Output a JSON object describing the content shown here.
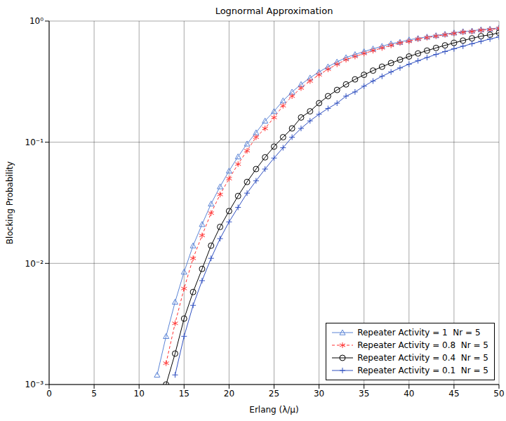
{
  "chart_data": {
    "type": "line",
    "title": "Lognormal Approximation",
    "x_label": "Erlang (λ/μ)",
    "y_label": "Blocking Probability",
    "x": [
      12,
      13,
      14,
      15,
      16,
      17,
      18,
      19,
      20,
      21,
      22,
      23,
      24,
      25,
      26,
      27,
      28,
      29,
      30,
      31,
      32,
      33,
      34,
      35,
      36,
      37,
      38,
      39,
      40,
      41,
      42,
      43,
      44,
      45,
      46,
      47,
      48,
      49,
      50
    ],
    "series": [
      {
        "name": "Repeater Activity = 1  Nr = 5",
        "color": "#5b84d6",
        "marker": "triangle",
        "line_style": "solid",
        "values": [
          0.0012,
          0.0025,
          0.0048,
          0.0085,
          0.014,
          0.021,
          0.031,
          0.043,
          0.058,
          0.076,
          0.097,
          0.12,
          0.15,
          0.18,
          0.22,
          0.26,
          0.3,
          0.34,
          0.38,
          0.42,
          0.46,
          0.5,
          0.53,
          0.56,
          0.59,
          0.62,
          0.65,
          0.67,
          0.7,
          0.72,
          0.74,
          0.76,
          0.78,
          0.8,
          0.82,
          0.83,
          0.85,
          0.86,
          0.88
        ]
      },
      {
        "name": "Repeater Activity = 0.8  Nr = 5",
        "color": "#ff3030",
        "marker": "star",
        "line_style": "dashed",
        "values": [
          null,
          0.0015,
          0.0032,
          0.0062,
          0.011,
          0.017,
          0.026,
          0.037,
          0.05,
          0.066,
          0.085,
          0.11,
          0.13,
          0.16,
          0.2,
          0.24,
          0.28,
          0.32,
          0.36,
          0.4,
          0.44,
          0.48,
          0.51,
          0.54,
          0.57,
          0.6,
          0.63,
          0.66,
          0.68,
          0.71,
          0.73,
          0.75,
          0.77,
          0.79,
          0.81,
          0.82,
          0.84,
          0.85,
          0.87
        ]
      },
      {
        "name": "Repeater Activity = 0.4  Nr = 5",
        "color": "#000000",
        "marker": "circle",
        "line_style": "solid",
        "values": [
          null,
          0.001,
          0.0018,
          0.0035,
          0.0058,
          0.009,
          0.014,
          0.02,
          0.027,
          0.036,
          0.047,
          0.06,
          0.075,
          0.092,
          0.11,
          0.13,
          0.16,
          0.18,
          0.21,
          0.24,
          0.27,
          0.3,
          0.33,
          0.36,
          0.39,
          0.42,
          0.45,
          0.48,
          0.51,
          0.54,
          0.57,
          0.6,
          0.63,
          0.66,
          0.69,
          0.72,
          0.75,
          0.77,
          0.8
        ]
      },
      {
        "name": "Repeater Activity = 0.1  Nr = 5",
        "color": "#3050c0",
        "marker": "plus",
        "line_style": "solid",
        "values": [
          null,
          null,
          0.0012,
          0.0025,
          0.0045,
          0.0072,
          0.011,
          0.016,
          0.022,
          0.029,
          0.038,
          0.048,
          0.06,
          0.074,
          0.09,
          0.11,
          0.13,
          0.15,
          0.17,
          0.19,
          0.21,
          0.24,
          0.26,
          0.29,
          0.32,
          0.35,
          0.38,
          0.41,
          0.44,
          0.47,
          0.5,
          0.53,
          0.56,
          0.59,
          0.62,
          0.65,
          0.68,
          0.71,
          0.74
        ]
      }
    ],
    "xlim": [
      0,
      50
    ],
    "xticks": [
      0,
      5,
      10,
      15,
      20,
      25,
      30,
      35,
      40,
      45,
      50
    ],
    "ylim": [
      0.001,
      1
    ],
    "yticks": [
      {
        "value": 0.001,
        "label": "10⁻³"
      },
      {
        "value": 0.01,
        "label": "10⁻²"
      },
      {
        "value": 0.1,
        "label": "10⁻¹"
      },
      {
        "value": 1,
        "label": "10⁰"
      }
    ],
    "log": "y",
    "grid": true,
    "legend": "lower right"
  }
}
